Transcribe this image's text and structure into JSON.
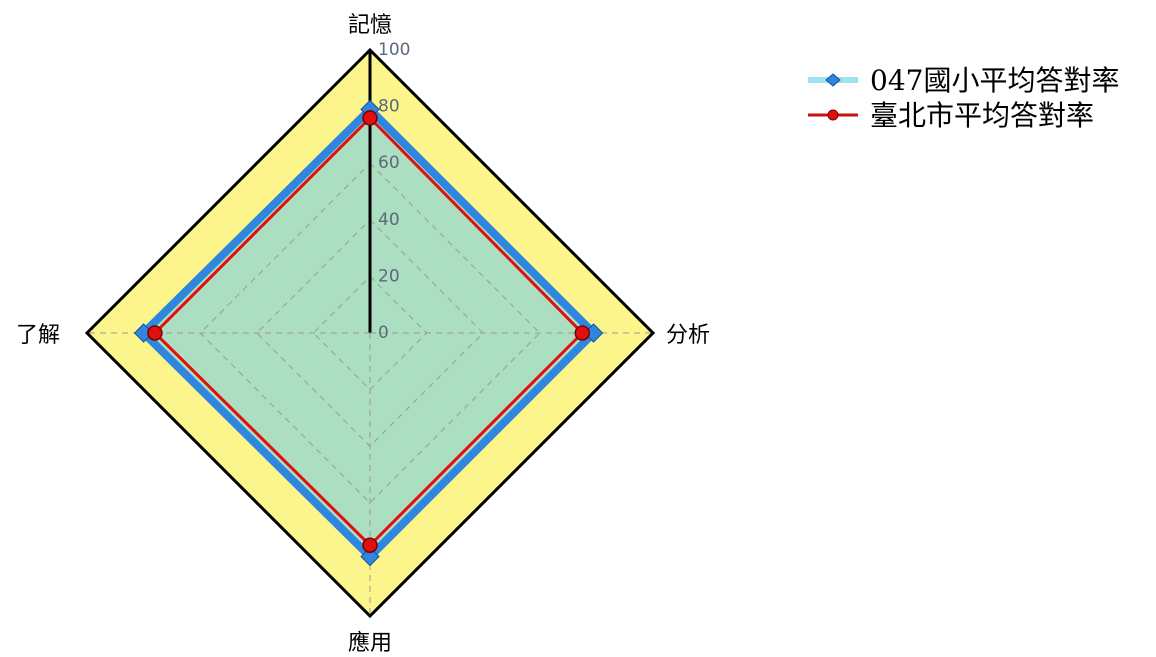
{
  "chart_data": {
    "type": "radar",
    "axes": [
      "記憶",
      "分析",
      "應用",
      "了解"
    ],
    "rmin": 0,
    "rmax": 100,
    "ticks": [
      "0",
      "20",
      "40",
      "60",
      "80",
      "100"
    ],
    "grid": true,
    "legend_position": "top-right",
    "series": [
      {
        "name": "047國小平均答對率",
        "values": [
          79,
          79,
          79,
          80
        ],
        "color": "#2e86de"
      },
      {
        "name": "臺北市平均答對率",
        "values": [
          76,
          75,
          75,
          76
        ],
        "color": "#e01010"
      }
    ]
  },
  "colors": {
    "outer_fill": "#fbf58c",
    "inner_fill": "#a8dcc4",
    "frame": "#000000",
    "grid": "#9a9a9a"
  }
}
